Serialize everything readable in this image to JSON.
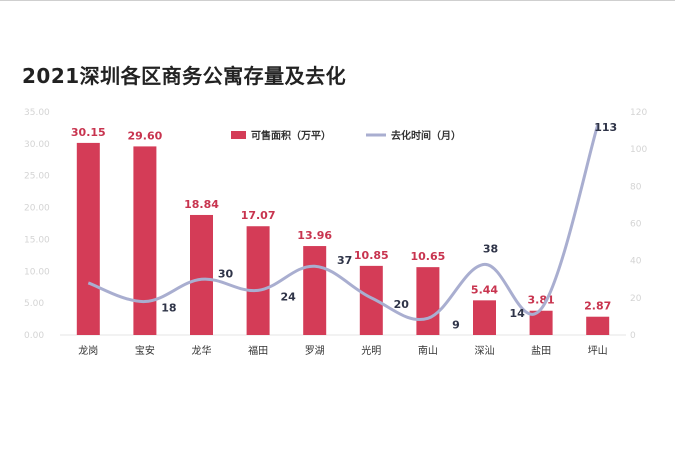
{
  "chart_data": {
    "type": "bar",
    "title": "2021深圳各区商务公寓存量及去化",
    "categories": [
      "龙岗",
      "宝安",
      "龙华",
      "福田",
      "罗湖",
      "光明",
      "南山",
      "深汕",
      "盐田",
      "坪山"
    ],
    "series": [
      {
        "name": "可售面积（万平）",
        "type": "bar",
        "axis": "left",
        "color": "#d43c57",
        "values": [
          30.15,
          29.6,
          18.84,
          17.07,
          13.96,
          10.85,
          10.65,
          5.44,
          3.81,
          2.87
        ],
        "labels": [
          "30.15",
          "29.60",
          "18.84",
          "17.07",
          "13.96",
          "10.85",
          "10.65",
          "5.44",
          "3.81",
          "2.87"
        ]
      },
      {
        "name": "去化时间（月）",
        "type": "line",
        "axis": "right",
        "color": "#a9aed0",
        "values": [
          null,
          18,
          30,
          24,
          37,
          20,
          9,
          38,
          14,
          113
        ],
        "labels": [
          "",
          "18",
          "30",
          "24",
          "37",
          "20",
          "9",
          "38",
          "14",
          "113"
        ]
      }
    ],
    "ylim_left": [
      0,
      35
    ],
    "yticks_left": [
      "0.00",
      "5.00",
      "10.00",
      "15.00",
      "20.00",
      "25.00",
      "30.00",
      "35.00"
    ],
    "ylim_right": [
      0,
      120
    ],
    "yticks_right": [
      "0",
      "20",
      "40",
      "60",
      "80",
      "100",
      "120"
    ],
    "legend": "top",
    "grid": false
  }
}
